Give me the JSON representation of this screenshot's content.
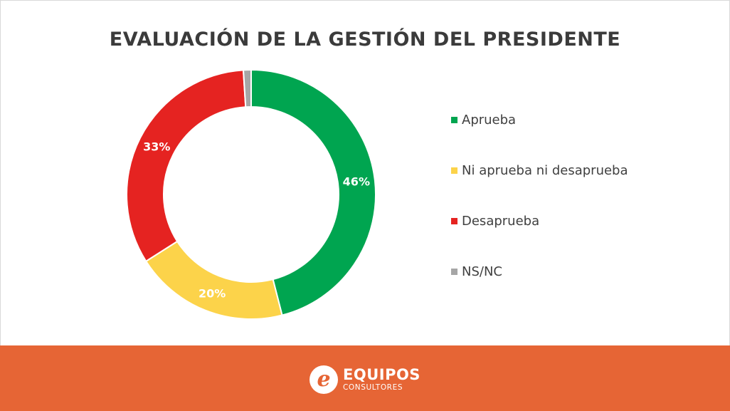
{
  "chart_data": {
    "type": "pie",
    "title": "EVALUACIÓN DE LA GESTIÓN DEL PRESIDENTE",
    "categories": [
      "Aprueba",
      "Ni aprueba ni desaprueba",
      "Desaprueba",
      "NS/NC"
    ],
    "values": [
      46,
      20,
      33,
      1
    ],
    "labels": [
      "46%",
      "20%",
      "33%",
      ""
    ],
    "colors": [
      "#00a550",
      "#fcd34a",
      "#e52321",
      "#a6a6a6"
    ],
    "legend_position": "right"
  },
  "footer": {
    "background": "#e66535",
    "brand": {
      "icon": "e-logo-icon",
      "line1": "EQUIPOS",
      "line2": "CONSULTORES"
    }
  }
}
